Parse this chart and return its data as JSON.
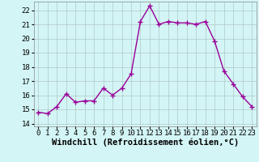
{
  "x": [
    0,
    1,
    2,
    3,
    4,
    5,
    6,
    7,
    8,
    9,
    10,
    11,
    12,
    13,
    14,
    15,
    16,
    17,
    18,
    19,
    20,
    21,
    22,
    23
  ],
  "y": [
    14.8,
    14.7,
    15.2,
    16.1,
    15.5,
    15.6,
    15.6,
    16.5,
    16.0,
    16.5,
    17.5,
    21.2,
    22.3,
    21.0,
    21.2,
    21.1,
    21.1,
    21.0,
    21.2,
    19.8,
    17.7,
    16.8,
    15.9,
    15.2
  ],
  "line_color": "#990099",
  "marker": "+",
  "marker_size": 4,
  "bg_color": "#d4f5f5",
  "grid_color": "#b0c8c8",
  "xlabel": "Windchill (Refroidissement éolien,°C)",
  "xlabel_fontsize": 7.5,
  "tick_fontsize": 6.5,
  "ylim": [
    13.8,
    22.6
  ],
  "xlim": [
    -0.5,
    23.5
  ],
  "yticks": [
    14,
    15,
    16,
    17,
    18,
    19,
    20,
    21,
    22
  ],
  "xtick_labels": [
    "0",
    "1",
    "2",
    "3",
    "4",
    "5",
    "6",
    "7",
    "8",
    "9",
    "10",
    "11",
    "12",
    "13",
    "14",
    "15",
    "16",
    "17",
    "18",
    "19",
    "20",
    "21",
    "22",
    "23"
  ]
}
